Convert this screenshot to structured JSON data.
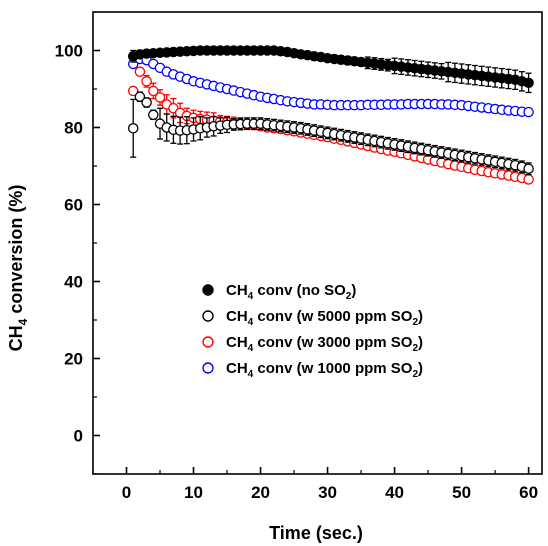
{
  "chart_data": {
    "type": "scatter",
    "xlabel": "Time (sec.)",
    "ylabel": "CH4 conversion (%)",
    "xlim": [
      -5,
      62
    ],
    "ylim": [
      -10,
      110
    ],
    "xticks": [
      0,
      10,
      20,
      30,
      40,
      50,
      60
    ],
    "yticks": [
      0,
      20,
      40,
      60,
      80,
      100
    ],
    "grid": false,
    "legend_position": "center-left",
    "series": [
      {
        "name": "CH4 conv (no SO2)",
        "label_parts": {
          "pre": "CH",
          "sub1": "4",
          "mid": " conv (no SO",
          "sub2": "2",
          "post": ")"
        },
        "marker": "filled-circle",
        "color": "#000000",
        "x": [
          1,
          2,
          3,
          4,
          5,
          6,
          7,
          8,
          9,
          10,
          11,
          12,
          13,
          14,
          15,
          16,
          17,
          18,
          19,
          20,
          21,
          22,
          23,
          24,
          25,
          26,
          27,
          28,
          29,
          30,
          31,
          32,
          33,
          34,
          35,
          36,
          37,
          38,
          39,
          40,
          41,
          42,
          43,
          44,
          45,
          46,
          47,
          48,
          49,
          50,
          51,
          52,
          53,
          54,
          55,
          56,
          57,
          58,
          59,
          60
        ],
        "y": [
          98.5,
          99,
          99.2,
          99.3,
          99.4,
          99.5,
          99.6,
          99.7,
          99.8,
          99.9,
          100,
          100,
          100,
          100,
          100,
          100,
          100,
          100,
          100,
          100,
          100,
          100,
          99.8,
          99.6,
          99.3,
          99,
          98.8,
          98.5,
          98.3,
          98,
          97.8,
          97.6,
          97.4,
          97.2,
          97,
          96.8,
          96.6,
          96.4,
          96.2,
          96,
          95.8,
          95.6,
          95.4,
          95.2,
          95,
          94.8,
          94.6,
          94.4,
          94.2,
          94,
          93.8,
          93.6,
          93.4,
          93.2,
          93,
          92.8,
          92.6,
          92.4,
          92,
          91.6
        ],
        "error": [
          1.5,
          1,
          0.5,
          0,
          0,
          0,
          0,
          0,
          0,
          0,
          0,
          0,
          0,
          0,
          0,
          0,
          0,
          0,
          0,
          0,
          0,
          0,
          0,
          0,
          0,
          0,
          0,
          0,
          0,
          0,
          0,
          1,
          1,
          1,
          1,
          1.5,
          1.5,
          1.5,
          1.5,
          2,
          2,
          2,
          2,
          2,
          2,
          2,
          2,
          2.5,
          2.5,
          2.5,
          2.5,
          2.5,
          2.5,
          2.5,
          2.5,
          2.5,
          2.5,
          2.5,
          2.5,
          2.5
        ]
      },
      {
        "name": "CH4 conv (w 5000 ppm SO2)",
        "label_parts": {
          "pre": "CH",
          "sub1": "4",
          "mid": " conv (w 5000 ppm SO",
          "sub2": "2",
          "post": ")"
        },
        "marker": "open-circle",
        "color": "#000000",
        "x": [
          1,
          2,
          3,
          4,
          5,
          6,
          7,
          8,
          9,
          10,
          11,
          12,
          13,
          14,
          15,
          16,
          17,
          18,
          19,
          20,
          21,
          22,
          23,
          24,
          25,
          26,
          27,
          28,
          29,
          30,
          31,
          32,
          33,
          34,
          35,
          36,
          37,
          38,
          39,
          40,
          41,
          42,
          43,
          44,
          45,
          46,
          47,
          48,
          49,
          50,
          51,
          52,
          53,
          54,
          55,
          56,
          57,
          58,
          59,
          60
        ],
        "y": [
          79.8,
          88,
          86.5,
          83.3,
          81,
          80,
          79.4,
          79.2,
          79.3,
          79.5,
          79.8,
          80,
          80.3,
          80.5,
          80.7,
          80.8,
          80.9,
          81,
          81,
          81,
          80.8,
          80.6,
          80.4,
          80.2,
          80,
          79.8,
          79.5,
          79.2,
          78.9,
          78.6,
          78.3,
          78,
          77.7,
          77.4,
          77.1,
          76.8,
          76.5,
          76.2,
          75.9,
          75.6,
          75.3,
          75,
          74.7,
          74.4,
          74.1,
          73.8,
          73.5,
          73.2,
          72.9,
          72.6,
          72.3,
          72,
          71.7,
          71.4,
          71.1,
          70.8,
          70.5,
          70.2,
          69.8,
          69.3
        ],
        "error": [
          7.5,
          1.2,
          1.2,
          1.2,
          4,
          3.5,
          3.5,
          3.5,
          3.5,
          3,
          3,
          2.5,
          2.5,
          2,
          2,
          1.5,
          1.5,
          1.5,
          1.5,
          1.5,
          1.5,
          1.5,
          1.5,
          1.5,
          1.5,
          1.5,
          1.5,
          1.5,
          1.5,
          1.5,
          1.5,
          1.5,
          1.5,
          1.5,
          1.5,
          1.5,
          1.5,
          1.5,
          1.5,
          1.5,
          1.5,
          1.5,
          1.5,
          1.5,
          1.5,
          1.5,
          1.5,
          1.5,
          1.5,
          1.5,
          1.5,
          1.5,
          1.5,
          1.5,
          1.5,
          1.5,
          1.5,
          1.5,
          1.5,
          1.5
        ]
      },
      {
        "name": "CH4 conv (w 3000 ppm SO2)",
        "label_parts": {
          "pre": "CH",
          "sub1": "4",
          "mid": " conv (w 3000 ppm SO",
          "sub2": "2",
          "post": ")"
        },
        "marker": "open-circle",
        "color": "#ff0000",
        "x": [
          1,
          2,
          3,
          4,
          5,
          6,
          7,
          8,
          9,
          10,
          11,
          12,
          13,
          14,
          15,
          16,
          17,
          18,
          19,
          20,
          21,
          22,
          23,
          24,
          25,
          26,
          27,
          28,
          29,
          30,
          31,
          32,
          33,
          34,
          35,
          36,
          37,
          38,
          39,
          40,
          41,
          42,
          43,
          44,
          45,
          46,
          47,
          48,
          49,
          50,
          51,
          52,
          53,
          54,
          55,
          56,
          57,
          58,
          59,
          60
        ],
        "y": [
          89.5,
          94.5,
          92,
          89.5,
          87.8,
          86,
          85,
          83.8,
          83,
          82.5,
          82.2,
          82,
          81.8,
          81.6,
          81.4,
          81.2,
          81,
          80.8,
          80.6,
          80.3,
          80,
          79.8,
          79.6,
          79.3,
          79,
          78.7,
          78.4,
          78.1,
          77.8,
          77.5,
          77.1,
          76.8,
          76.4,
          76,
          75.6,
          75.2,
          74.8,
          74.4,
          74,
          73.7,
          73.3,
          72.9,
          72.5,
          72.1,
          71.7,
          71.3,
          70.9,
          70.5,
          70.1,
          69.8,
          69.4,
          69,
          68.7,
          68.4,
          68.1,
          67.8,
          67.5,
          67.2,
          66.9,
          66.5
        ],
        "error": [
          1,
          1,
          1.5,
          2,
          2,
          2.5,
          2.5,
          2.5,
          2,
          2,
          2,
          2,
          2,
          1.5,
          1.5,
          1.5,
          1.5,
          1,
          1,
          1,
          1,
          1,
          1,
          1,
          1,
          1,
          1,
          1,
          1,
          1,
          1,
          1,
          1,
          1,
          1,
          1,
          1,
          1,
          1,
          1,
          1,
          1,
          1,
          1,
          1,
          1,
          1,
          1,
          1,
          1,
          1,
          1,
          1,
          1,
          1,
          1,
          1,
          1,
          1,
          1
        ]
      },
      {
        "name": "CH4 conv (w 1000 ppm SO2)",
        "label_parts": {
          "pre": "CH",
          "sub1": "4",
          "mid": " conv (w 1000 ppm SO",
          "sub2": "2",
          "post": ")"
        },
        "marker": "open-circle",
        "color": "#0000ff",
        "x": [
          1,
          2,
          3,
          4,
          5,
          6,
          7,
          8,
          9,
          10,
          11,
          12,
          13,
          14,
          15,
          16,
          17,
          18,
          19,
          20,
          21,
          22,
          23,
          24,
          25,
          26,
          27,
          28,
          29,
          30,
          31,
          32,
          33,
          34,
          35,
          36,
          37,
          38,
          39,
          40,
          41,
          42,
          43,
          44,
          45,
          46,
          47,
          48,
          49,
          50,
          51,
          52,
          53,
          54,
          55,
          56,
          57,
          58,
          59,
          60
        ],
        "y": [
          96.5,
          97.8,
          97.5,
          96.5,
          95.5,
          94.5,
          93.8,
          93.2,
          92.6,
          92,
          91.6,
          91.2,
          90.8,
          90.4,
          90,
          89.6,
          89.2,
          88.8,
          88.4,
          88,
          87.7,
          87.4,
          87.1,
          86.8,
          86.6,
          86.4,
          86.2,
          86,
          86,
          85.9,
          85.8,
          85.8,
          85.8,
          85.8,
          85.8,
          85.9,
          85.9,
          85.9,
          86,
          86,
          86,
          86.1,
          86.1,
          86.1,
          86.1,
          86.1,
          86,
          86,
          85.9,
          85.8,
          85.6,
          85.4,
          85.2,
          85,
          84.8,
          84.6,
          84.4,
          84.3,
          84.1,
          84
        ]
      }
    ]
  }
}
